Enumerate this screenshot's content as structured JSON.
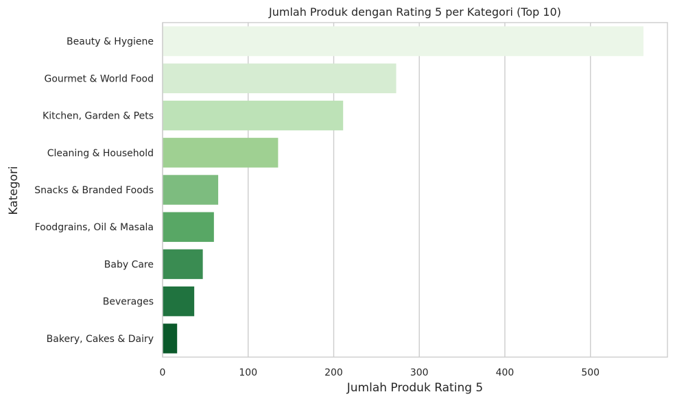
{
  "chart_data": {
    "type": "bar",
    "orientation": "horizontal",
    "title": "Jumlah Produk dengan Rating 5 per Kategori (Top 10)",
    "xlabel": "Jumlah Produk Rating 5",
    "ylabel": "Kategori",
    "categories": [
      "Beauty & Hygiene",
      "Gourmet & World Food",
      "Kitchen, Garden & Pets",
      "Cleaning & Household",
      "Snacks & Branded Foods",
      "Foodgrains, Oil & Masala",
      "Baby Care",
      "Beverages",
      "Bakery, Cakes & Dairy"
    ],
    "values": [
      562,
      273,
      211,
      135,
      65,
      60,
      47,
      37,
      17
    ],
    "colors": [
      "#ebf6e8",
      "#d6ecd2",
      "#bde2b7",
      "#9fd092",
      "#7dbc7f",
      "#58a765",
      "#3a8c52",
      "#20733f",
      "#0b5a2b"
    ],
    "xlim": [
      0,
      590
    ],
    "xticks": [
      0,
      100,
      200,
      300,
      400,
      500
    ],
    "grid": true,
    "grid_axis": "x",
    "grid_color": "#cccccc",
    "axes_edge_color": "#cccccc",
    "legend": "none"
  }
}
